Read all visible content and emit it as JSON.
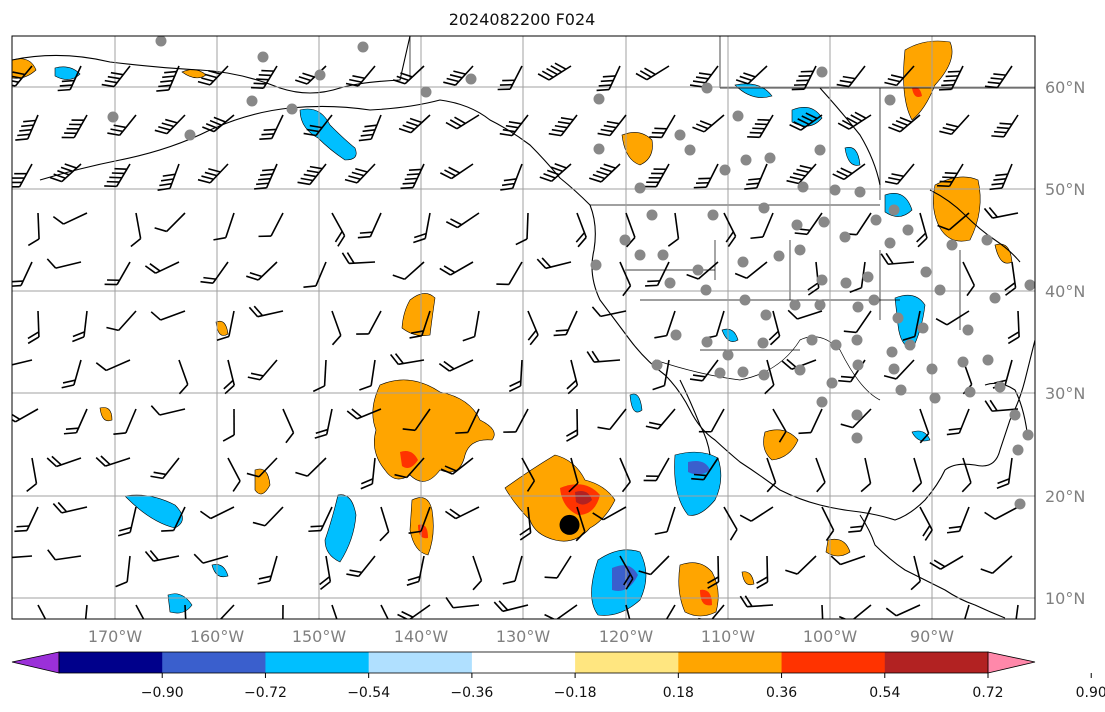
{
  "title": "2024082200 F024",
  "lat_labels": [
    "60°N",
    "50°N",
    "40°N",
    "30°N",
    "20°N",
    "10°N"
  ],
  "lon_labels": [
    "170°W",
    "160°W",
    "150°W",
    "140°W",
    "130°W",
    "120°W",
    "110°W",
    "100°W",
    "90°W"
  ],
  "colorbar": {
    "tick_labels": [
      "−0.90",
      "−0.72",
      "−0.54",
      "−0.36",
      "−0.18",
      "0.18",
      "0.36",
      "0.54",
      "0.72",
      "0.90"
    ],
    "colors": [
      "#9b30d9",
      "#00008b",
      "#3a5fcd",
      "#00bfff",
      "#b0e0ff",
      "#ffffff",
      "#ffe680",
      "#ffa500",
      "#ff3300",
      "#b22222",
      "#ff88aa"
    ]
  },
  "map": {
    "lon_range": [
      -180,
      -80
    ],
    "lat_range": [
      8,
      65
    ],
    "gridline_color": "#a0a0a0",
    "coastline_color": "#000000",
    "station_color": "#888888",
    "storm_center": {
      "lon": -125.5,
      "lat": 17.2
    },
    "positive_color": "#ffa500",
    "negative_color": "#00bfff"
  }
}
